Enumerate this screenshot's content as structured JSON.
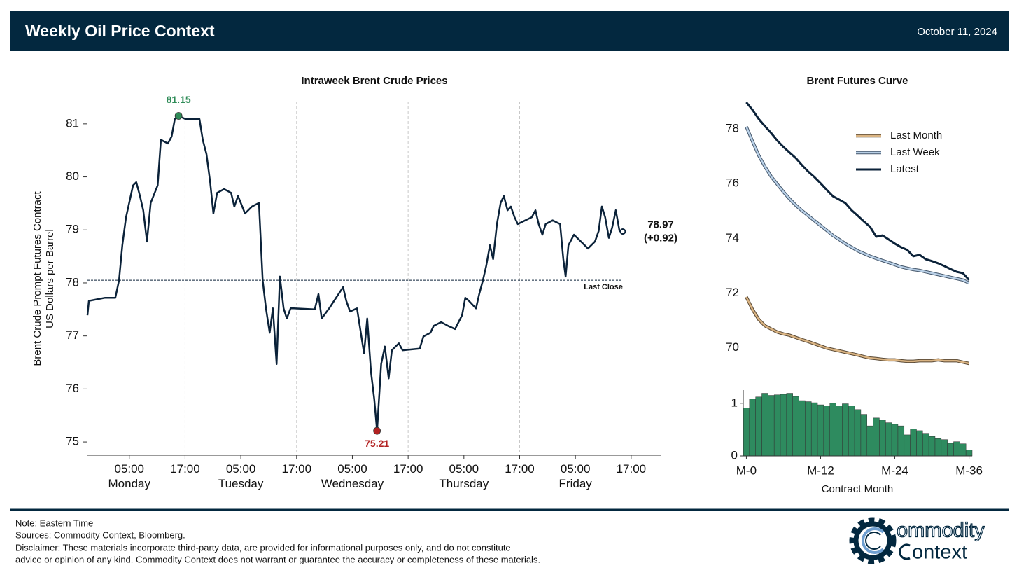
{
  "header": {
    "title": "Weekly Oil Price Context",
    "date": "October 11, 2024"
  },
  "chart_data": [
    {
      "type": "line",
      "title": "Intraweek Brent Crude Prices",
      "y_label": [
        "Brent Crude Prompt Futures Contract",
        "US Dollars per Barrel"
      ],
      "color": "#0b2239",
      "x": [
        -4.0,
        -3.7,
        -0.2,
        2.0,
        2.8,
        3.5,
        4.3,
        5.8,
        6.5,
        7.3,
        8.0,
        8.8,
        9.6,
        11.1,
        11.8,
        13.3,
        14.1,
        14.8,
        15.6,
        17.1,
        20.1,
        20.8,
        21.6,
        22.4,
        23.1,
        23.9,
        25.4,
        26.9,
        27.6,
        28.4,
        29.9,
        31.4,
        32.9,
        33.7,
        34.4,
        35.2,
        35.9,
        36.7,
        37.4,
        38.2,
        38.9,
        39.7,
        40.4,
        44.9,
        45.7,
        46.4,
        48.0,
        49.5,
        51.0,
        51.7,
        52.5,
        54.0,
        54.7,
        55.5,
        56.2,
        57.0,
        57.7,
        58.3,
        59.2,
        60.0,
        60.8,
        61.5,
        62.3,
        63.0,
        63.8,
        67.5,
        68.3,
        69.8,
        70.5,
        72.1,
        73.6,
        75.1,
        76.6,
        77.3,
        78.1,
        79.6,
        80.3,
        81.1,
        81.8,
        82.6,
        83.3,
        84.1,
        84.9,
        85.6,
        86.4,
        87.1,
        87.9,
        88.6,
        91.6,
        92.4,
        93.1,
        93.9,
        94.6,
        96.1,
        97.7,
        98.4,
        98.9,
        99.5,
        100.7,
        102.2,
        103.7,
        105.2,
        106.0,
        106.7,
        107.4,
        108.2,
        108.9,
        109.7,
        110.5,
        111.2
      ],
      "values": [
        77.39,
        77.66,
        77.72,
        77.72,
        78.05,
        78.71,
        79.24,
        79.84,
        79.9,
        79.64,
        79.37,
        78.78,
        79.51,
        79.84,
        80.7,
        80.63,
        80.76,
        81.09,
        81.15,
        81.09,
        81.09,
        80.7,
        80.43,
        79.9,
        79.31,
        79.7,
        79.77,
        79.7,
        79.44,
        79.64,
        79.31,
        79.44,
        79.51,
        78.05,
        77.52,
        77.06,
        77.52,
        76.47,
        78.12,
        77.52,
        77.33,
        77.52,
        77.52,
        77.5,
        77.79,
        77.33,
        77.52,
        77.72,
        77.92,
        77.66,
        77.46,
        77.52,
        77.13,
        76.67,
        77.33,
        76.33,
        75.81,
        75.21,
        76.47,
        76.8,
        76.2,
        76.73,
        76.8,
        76.86,
        76.73,
        76.76,
        76.99,
        77.06,
        77.19,
        77.26,
        77.19,
        77.13,
        77.39,
        77.72,
        77.66,
        77.52,
        77.79,
        78.05,
        78.32,
        78.71,
        78.45,
        79.11,
        79.51,
        79.64,
        79.37,
        79.44,
        79.24,
        79.11,
        79.24,
        79.37,
        79.11,
        78.91,
        79.11,
        79.18,
        79.11,
        78.45,
        78.12,
        78.71,
        78.91,
        78.78,
        78.65,
        78.78,
        78.98,
        79.44,
        79.24,
        78.85,
        79.04,
        79.37,
        78.98,
        78.97
      ],
      "xlim": [
        -4,
        119.5
      ],
      "ylim": [
        74.75,
        81.5
      ],
      "yticks": [
        75,
        76,
        77,
        78,
        79,
        80,
        81
      ],
      "xticks": [
        {
          "value": 5,
          "label": "05:00\nMonday"
        },
        {
          "value": 17,
          "label": "17:00"
        },
        {
          "value": 29,
          "label": "05:00\nTuesday"
        },
        {
          "value": 41,
          "label": "17:00"
        },
        {
          "value": 53,
          "label": "05:00\nWednesday"
        },
        {
          "value": 65,
          "label": "17:00"
        },
        {
          "value": 77,
          "label": "05:00\nThursday"
        },
        {
          "value": 89,
          "label": "17:00"
        },
        {
          "value": 101,
          "label": "05:00\nFriday"
        },
        {
          "value": 113,
          "label": "17:00"
        }
      ],
      "vlines": [
        17,
        41,
        65,
        89
      ],
      "reference": {
        "value": 78.05,
        "label": "Last Close"
      },
      "annotations": [
        {
          "x": 15.6,
          "y": 81.15,
          "label": "81.15",
          "color": "#2e8b57"
        },
        {
          "x": 58.3,
          "y": 75.21,
          "label": "75.21",
          "color": "#b22222"
        }
      ],
      "end_labels": [
        "78.97",
        "(+0.92)"
      ]
    },
    {
      "type": "line",
      "title": "Brent Futures Curve",
      "legend": "upper right",
      "x": [
        0,
        1,
        2,
        3,
        4,
        5,
        6,
        7,
        8,
        9,
        10,
        11,
        12,
        13,
        14,
        15,
        16,
        17,
        18,
        19,
        20,
        21,
        22,
        23,
        24,
        25,
        26,
        27,
        28,
        29,
        30,
        31,
        32,
        33,
        34,
        35,
        36
      ],
      "xlim": [
        -0.5,
        36.5
      ],
      "ylim": [
        69.2,
        79.1
      ],
      "yticks": [
        70,
        72,
        74,
        76,
        78
      ],
      "series": [
        {
          "name": "Last Month",
          "color": "#d9b382",
          "edge_color": "#5a4a36",
          "values": [
            71.86,
            71.4,
            71.04,
            70.81,
            70.69,
            70.58,
            70.51,
            70.46,
            70.38,
            70.3,
            70.23,
            70.15,
            70.07,
            69.99,
            69.94,
            69.89,
            69.84,
            69.79,
            69.74,
            69.68,
            69.63,
            69.61,
            69.58,
            69.56,
            69.56,
            69.53,
            69.51,
            69.51,
            69.53,
            69.53,
            69.53,
            69.56,
            69.53,
            69.53,
            69.53,
            69.48,
            69.43
          ]
        },
        {
          "name": "Last Week",
          "color": "#b8cfe6",
          "edge_color": "#44566a",
          "values": [
            78.08,
            77.54,
            77.03,
            76.62,
            76.26,
            75.98,
            75.7,
            75.44,
            75.21,
            75.01,
            74.83,
            74.65,
            74.47,
            74.29,
            74.11,
            73.96,
            73.81,
            73.68,
            73.55,
            73.45,
            73.35,
            73.27,
            73.19,
            73.12,
            73.04,
            72.96,
            72.91,
            72.86,
            72.83,
            72.78,
            72.73,
            72.68,
            72.63,
            72.58,
            72.53,
            72.48,
            72.37
          ]
        },
        {
          "name": "Latest",
          "color": "#0b2239",
          "values": [
            78.97,
            78.69,
            78.36,
            78.1,
            77.85,
            77.57,
            77.34,
            77.13,
            76.93,
            76.67,
            76.44,
            76.24,
            76.01,
            75.77,
            75.54,
            75.42,
            75.29,
            75.03,
            74.83,
            74.62,
            74.42,
            74.06,
            74.11,
            73.96,
            73.81,
            73.68,
            73.58,
            73.35,
            73.4,
            73.24,
            73.17,
            73.09,
            72.99,
            72.88,
            72.78,
            72.73,
            72.48
          ]
        }
      ]
    },
    {
      "type": "bar",
      "x_label": "Contract Month",
      "color": "#2e8b5f",
      "x": [
        0,
        1,
        2,
        3,
        4,
        5,
        6,
        7,
        8,
        9,
        10,
        11,
        12,
        13,
        14,
        15,
        16,
        17,
        18,
        19,
        20,
        21,
        22,
        23,
        24,
        25,
        26,
        27,
        28,
        29,
        30,
        31,
        32,
        33,
        34,
        35,
        36
      ],
      "values": [
        0.91,
        1.08,
        1.12,
        1.19,
        1.15,
        1.16,
        1.17,
        1.19,
        1.13,
        1.05,
        1.03,
        1.01,
        0.97,
        0.95,
        1.0,
        0.95,
        0.99,
        0.95,
        0.88,
        0.79,
        0.57,
        0.72,
        0.68,
        0.63,
        0.6,
        0.57,
        0.4,
        0.51,
        0.48,
        0.43,
        0.37,
        0.33,
        0.31,
        0.24,
        0.27,
        0.23,
        0.11
      ],
      "xlim": [
        -0.5,
        36.5
      ],
      "ylim": [
        0,
        1.25
      ],
      "yticks": [
        0,
        1
      ],
      "xticks": [
        {
          "value": 0,
          "label": "M-0"
        },
        {
          "value": 12,
          "label": "M-12"
        },
        {
          "value": 24,
          "label": "M-24"
        },
        {
          "value": 36,
          "label": "M-36"
        }
      ]
    }
  ],
  "footer": {
    "notes": [
      "Note: Eastern Time",
      "Sources: Commodity Context, Bloomberg.",
      "Disclaimer: These materials incorporate third-party data, are provided for informational purposes only, and do not constitute",
      "advice or opinion of any kind. Commodity Context does not warrant or guarantee the accuracy or completeness of these materials."
    ],
    "logo": [
      "ommodity",
      "ontext"
    ]
  }
}
